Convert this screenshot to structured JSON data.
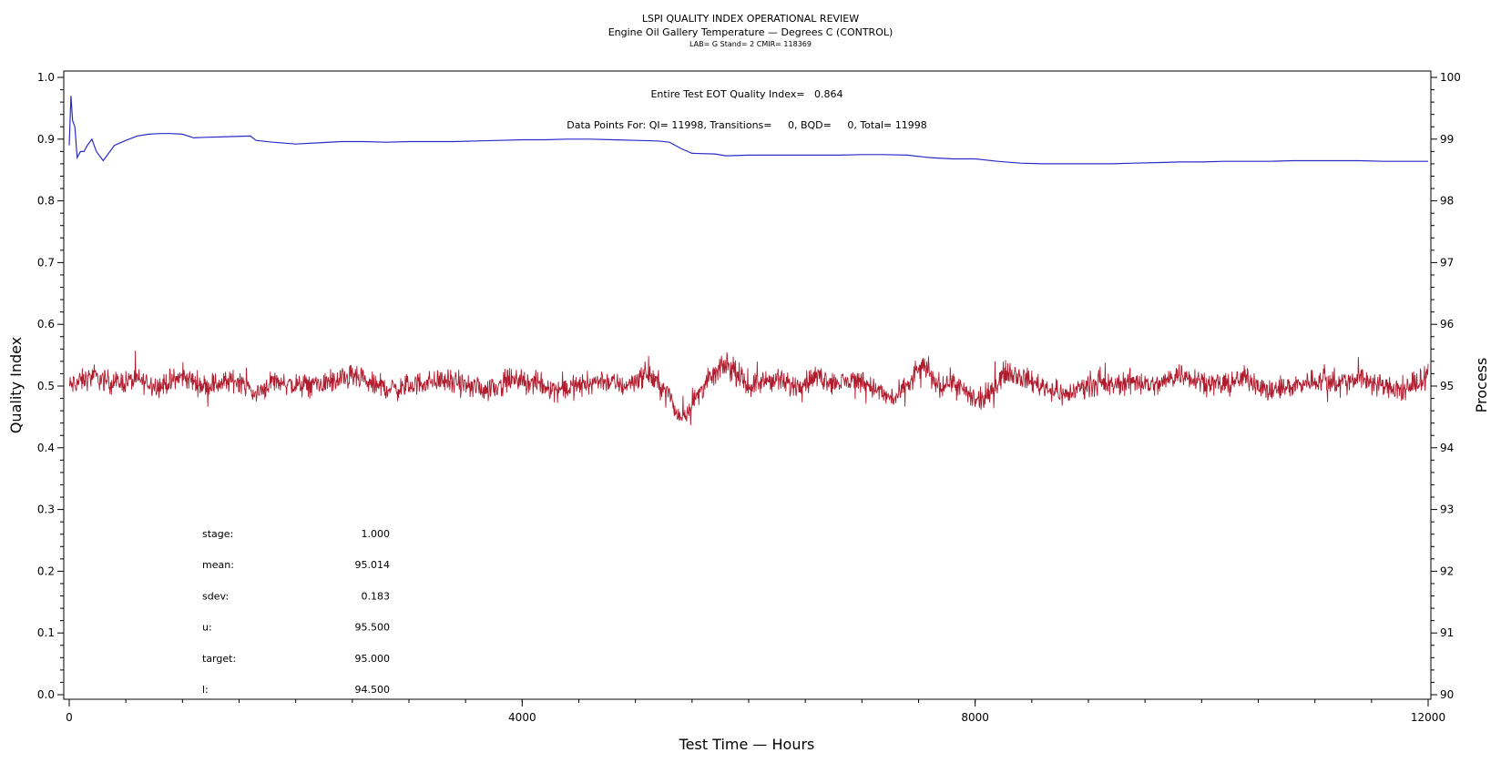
{
  "chart_data": {
    "type": "line",
    "title": "LSPI QUALITY INDEX OPERATIONAL REVIEW",
    "subtitle": "Engine Oil Gallery Temperature — Degrees C (CONTROL)",
    "subtitle2": "LAB= G Stand= 2 CMIR= 118369",
    "annotation_qi": "Entire Test EOT Quality Index=   0.864",
    "annotation_points": "Data Points For: QI= 11998, Transitions=     0, BQD=     0, Total= 11998",
    "xlabel": "Test Time — Hours",
    "ylabel_left": "Quality Index",
    "ylabel_right": "Process",
    "xlim": [
      0,
      12000
    ],
    "ylim_left": [
      0,
      1.0
    ],
    "ylim_right": [
      90,
      100
    ],
    "x_ticks": [
      "0",
      "4000",
      "8000",
      "12000"
    ],
    "y_left_ticks": [
      "0.0",
      "0.1",
      "0.2",
      "0.3",
      "0.4",
      "0.5",
      "0.6",
      "0.7",
      "0.8",
      "0.9",
      "1.0"
    ],
    "y_right_ticks": [
      "90",
      "91",
      "92",
      "93",
      "94",
      "95",
      "96",
      "97",
      "98",
      "99",
      "100"
    ],
    "colors": {
      "quality_index": "#2b2bc8",
      "process": "#b01c2e"
    },
    "series": [
      {
        "axis": "left",
        "x": [
          0,
          15,
          30,
          50,
          70,
          100,
          130,
          160,
          200,
          240,
          300,
          400,
          500,
          600,
          700,
          800,
          900,
          1000,
          1100,
          1200,
          1400,
          1600,
          1650,
          1800,
          2000,
          2200,
          2400,
          2600,
          2800,
          3000,
          3200,
          3400,
          3600,
          3800,
          4000,
          4200,
          4400,
          4600,
          4800,
          5000,
          5200,
          5300,
          5400,
          5500,
          5700,
          5800,
          6000,
          6200,
          6400,
          6600,
          6800,
          7000,
          7200,
          7400,
          7600,
          7800,
          8000,
          8200,
          8400,
          8600,
          8800,
          9000,
          9200,
          9400,
          9600,
          9800,
          10000,
          10200,
          10400,
          10600,
          10800,
          11000,
          11200,
          11400,
          11600,
          11800,
          12000
        ],
        "values": [
          0.89,
          0.97,
          0.93,
          0.92,
          0.87,
          0.88,
          0.88,
          0.89,
          0.9,
          0.88,
          0.865,
          0.89,
          0.898,
          0.905,
          0.908,
          0.909,
          0.909,
          0.908,
          0.902,
          0.903,
          0.904,
          0.905,
          0.898,
          0.895,
          0.892,
          0.894,
          0.896,
          0.896,
          0.895,
          0.896,
          0.896,
          0.896,
          0.897,
          0.898,
          0.899,
          0.899,
          0.9,
          0.9,
          0.899,
          0.898,
          0.897,
          0.895,
          0.885,
          0.877,
          0.876,
          0.873,
          0.874,
          0.874,
          0.874,
          0.874,
          0.874,
          0.875,
          0.875,
          0.874,
          0.87,
          0.868,
          0.868,
          0.864,
          0.861,
          0.86,
          0.86,
          0.86,
          0.86,
          0.861,
          0.862,
          0.863,
          0.863,
          0.864,
          0.864,
          0.864,
          0.865,
          0.865,
          0.865,
          0.865,
          0.864,
          0.864,
          0.864
        ]
      },
      {
        "axis": "right",
        "x": [
          0,
          200,
          400,
          600,
          800,
          1000,
          1200,
          1500,
          1650,
          1800,
          2000,
          2300,
          2500,
          2700,
          2900,
          3100,
          3300,
          3500,
          3700,
          3900,
          4100,
          4300,
          4500,
          4700,
          4900,
          5000,
          5100,
          5200,
          5300,
          5350,
          5400,
          5500,
          5600,
          5700,
          5800,
          6000,
          6200,
          6400,
          6600,
          6800,
          7000,
          7200,
          7300,
          7400,
          7500,
          7550,
          7600,
          7700,
          7800,
          7900,
          8000,
          8100,
          8200,
          8300,
          8400,
          8600,
          8800,
          9000,
          9200,
          9400,
          9600,
          9800,
          10000,
          10200,
          10400,
          10600,
          10800,
          11000,
          11200,
          11400,
          11600,
          11800,
          12000
        ],
        "values": [
          95.0,
          95.15,
          95.05,
          95.1,
          95.0,
          95.15,
          95.0,
          95.1,
          94.85,
          95.1,
          95.0,
          95.05,
          95.15,
          95.0,
          94.95,
          95.05,
          95.1,
          95.0,
          94.95,
          95.1,
          95.05,
          94.95,
          95.0,
          95.1,
          95.0,
          95.1,
          95.2,
          95.05,
          94.85,
          94.6,
          94.5,
          94.7,
          95.0,
          95.2,
          95.35,
          95.0,
          95.1,
          95.0,
          95.15,
          95.05,
          95.1,
          94.85,
          94.8,
          95.0,
          95.25,
          95.35,
          95.15,
          95.0,
          95.1,
          94.9,
          94.75,
          94.8,
          95.1,
          95.25,
          95.15,
          95.0,
          94.85,
          95.05,
          95.0,
          95.1,
          95.0,
          95.2,
          95.1,
          95.0,
          95.15,
          94.9,
          95.0,
          95.1,
          95.05,
          95.15,
          95.0,
          94.9,
          95.2
        ]
      }
    ]
  },
  "stats": [
    {
      "label": "stage:",
      "value": "1.000"
    },
    {
      "label": "mean:",
      "value": "95.014"
    },
    {
      "label": "sdev:",
      "value": "0.183"
    },
    {
      "label": "u:",
      "value": "95.500"
    },
    {
      "label": "target:",
      "value": "95.000"
    },
    {
      "label": "l:",
      "value": "94.500"
    }
  ]
}
